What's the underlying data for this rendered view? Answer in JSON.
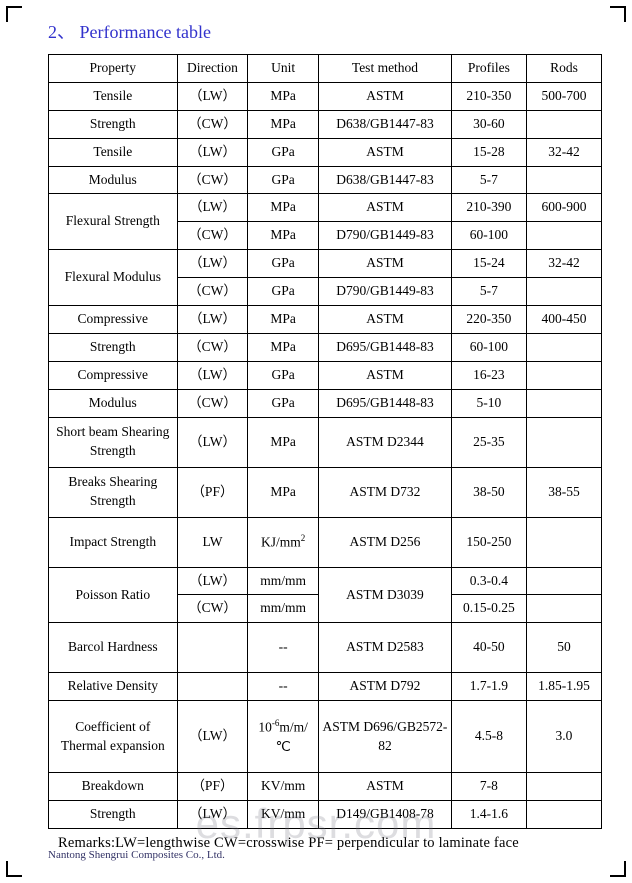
{
  "title": "2、 Performance table",
  "headers": {
    "property": "Property",
    "direction": "Direction",
    "unit": "Unit",
    "test": "Test method",
    "profiles": "Profiles",
    "rods": "Rods"
  },
  "rows": [
    {
      "prop": "Tensile",
      "dir": "（LW）",
      "unit": "MPa",
      "test": "ASTM",
      "prof": "210-350",
      "rods": "500-700",
      "propSpan": 1,
      "testSpan": 1
    },
    {
      "prop": "Strength",
      "dir": "（CW）",
      "unit": "MPa",
      "test": "D638/GB1447-83",
      "prof": "30-60",
      "rods": ""
    },
    {
      "prop": "Tensile",
      "dir": "（LW）",
      "unit": "GPa",
      "test": "ASTM",
      "prof": "15-28",
      "rods": "32-42"
    },
    {
      "prop": "Modulus",
      "dir": "（CW）",
      "unit": "GPa",
      "test": "D638/GB1447-83",
      "prof": "5-7",
      "rods": ""
    },
    {
      "prop": "Flexural Strength",
      "dir": "（LW）",
      "unit": "MPa",
      "test": "ASTM",
      "prof": "210-390",
      "rods": "600-900",
      "propRowspan": 2
    },
    {
      "dir": "（CW）",
      "unit": "MPa",
      "test": "D790/GB1449-83",
      "prof": "60-100",
      "rods": ""
    },
    {
      "prop": "Flexural Modulus",
      "dir": "（LW）",
      "unit": "GPa",
      "test": "ASTM",
      "prof": "15-24",
      "rods": "32-42",
      "propRowspan": 2
    },
    {
      "dir": "（CW）",
      "unit": "GPa",
      "test": "D790/GB1449-83",
      "prof": "5-7",
      "rods": ""
    },
    {
      "prop": "Compressive",
      "dir": "（LW）",
      "unit": "MPa",
      "test": "ASTM",
      "prof": "220-350",
      "rods": "400-450"
    },
    {
      "prop": "Strength",
      "dir": "（CW）",
      "unit": "MPa",
      "test": "D695/GB1448-83",
      "prof": "60-100",
      "rods": ""
    },
    {
      "prop": "Compressive",
      "dir": "（LW）",
      "unit": "GPa",
      "test": "ASTM",
      "prof": "16-23",
      "rods": ""
    },
    {
      "prop": "Modulus",
      "dir": "（CW）",
      "unit": "GPa",
      "test": "D695/GB1448-83",
      "prof": "5-10",
      "rods": ""
    },
    {
      "prop": "Short beam Shearing Strength",
      "dir": "（LW）",
      "unit": "MPa",
      "test": "ASTM D2344",
      "prof": "25-35",
      "rods": "",
      "tall": true
    },
    {
      "prop": "Breaks Shearing Strength",
      "dir": "（PF）",
      "unit": "MPa",
      "test": "ASTM D732",
      "prof": "38-50",
      "rods": "38-55",
      "tall": true
    },
    {
      "prop": "Impact Strength",
      "dir": "LW",
      "unitHtml": "KJ/mm<sup>2</sup>",
      "test": "ASTM D256",
      "prof": "150-250",
      "rods": "",
      "tall": true
    },
    {
      "prop": "Poisson Ratio",
      "dir": "（LW）",
      "unit": "mm/mm",
      "test": "ASTM D3039",
      "prof": "0.3-0.4",
      "rods": "",
      "propRowspan": 2,
      "testRowspan": 2
    },
    {
      "dir": "（CW）",
      "unit": "mm/mm",
      "prof": "0.15-0.25",
      "rods": ""
    },
    {
      "prop": "Barcol Hardness",
      "dir": "",
      "unit": "--",
      "test": "ASTM D2583",
      "prof": "40-50",
      "rods": "50",
      "tall": true
    },
    {
      "prop": "Relative Density",
      "dir": "",
      "unit": "--",
      "test": "ASTM D792",
      "prof": "1.7-1.9",
      "rods": "1.85-1.95"
    },
    {
      "prop": "Coefficient of Thermal expansion",
      "dir": "（LW）",
      "unitHtml": "10<sup>-6</sup>m/m/℃",
      "test": "ASTM D696/GB2572-82",
      "prof": "4.5-8",
      "rods": "3.0",
      "tall3": true
    },
    {
      "prop": "Breakdown",
      "dir": "（PF）",
      "unit": "KV/mm",
      "test": "ASTM",
      "prof": "7-8",
      "rods": ""
    },
    {
      "prop": "Strength",
      "dir": "（LW）",
      "unit": "KV/mm",
      "test": "D149/GB1408-78",
      "prof": "1.4-1.6",
      "rods": ""
    }
  ],
  "remarks": "Remarks:LW=lengthwise    CW=crosswise    PF= perpendicular to laminate face",
  "footer": "Nantong Shengrui Composites Co., Ltd.",
  "watermark": "es.frpsr.com",
  "colors": {
    "titleColor": "#3232cc",
    "borderColor": "#000000",
    "background": "#ffffff",
    "watermarkColor": "rgba(120,120,130,0.25)"
  },
  "fontSizes": {
    "title": 18,
    "table": 13.5,
    "remarks": 14.5,
    "footer": 11,
    "watermark": 42
  }
}
